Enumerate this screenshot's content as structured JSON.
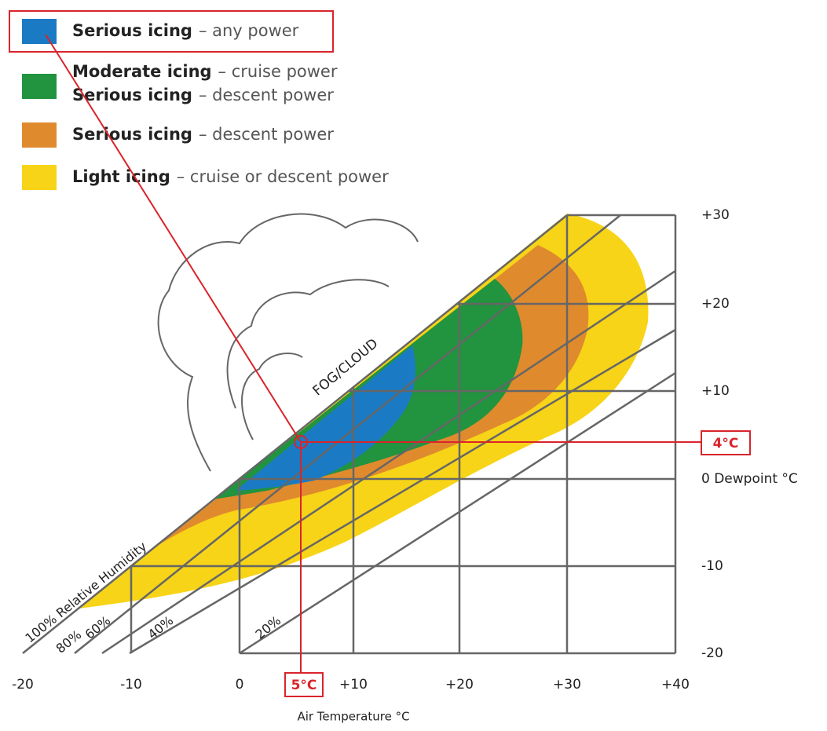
{
  "legend": [
    {
      "lines": [
        {
          "bold": "Serious icing",
          "rest": "– any power"
        }
      ],
      "color": "#1a7bc4"
    },
    {
      "lines": [
        {
          "bold": "Moderate icing",
          "rest": "– cruise power"
        },
        {
          "bold": "Serious icing",
          "rest": "– descent power"
        }
      ],
      "color": "#22933f"
    },
    {
      "lines": [
        {
          "bold": "Serious icing",
          "rest": "– descent power"
        }
      ],
      "color": "#e08a2e"
    },
    {
      "lines": [
        {
          "bold": "Light icing",
          "rest": "– cruise or descent power"
        }
      ],
      "color": "#f7d417"
    }
  ],
  "y_labels": [
    "+30",
    "+20",
    "+10",
    "0 Dewpoint °C",
    "-10",
    "-20"
  ],
  "x_labels": [
    "-20",
    "-10",
    "0",
    "+10",
    "+20",
    "+30",
    "+40"
  ],
  "x_title": "Air Temperature °C",
  "region_label": "FOG/CLOUD",
  "humidity_labels": [
    "100% Relative Humidity",
    "80%",
    "60%",
    "40%",
    "20%"
  ],
  "markers": {
    "dewpoint": "4°C",
    "temperature": "5°C"
  }
}
